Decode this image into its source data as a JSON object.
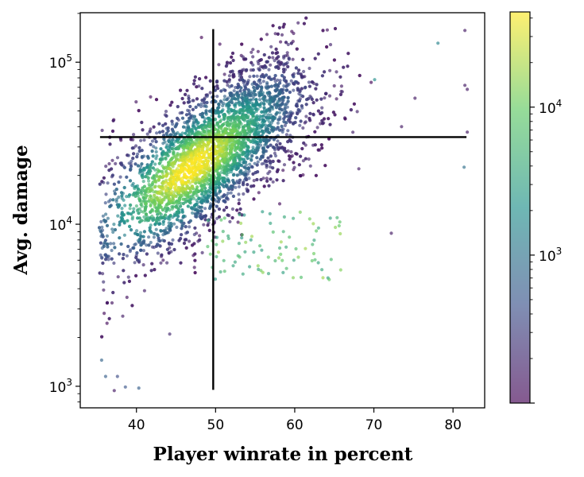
{
  "chart_data": {
    "type": "scatter",
    "title": "",
    "xlabel": "Player winrate in percent",
    "ylabel": "Avg. damage",
    "xscale": "linear",
    "yscale": "log",
    "xlim": [
      32.9,
      84.0
    ],
    "ylim": [
      736,
      202000
    ],
    "xticks": [
      40,
      50,
      60,
      70,
      80
    ],
    "xtick_labels": [
      "40",
      "50",
      "60",
      "70",
      "80"
    ],
    "yticks": [
      1000,
      10000,
      100000
    ],
    "ytick_labels": [
      {
        "base": "10",
        "exp": "3"
      },
      {
        "base": "10",
        "exp": "4"
      },
      {
        "base": "10",
        "exp": "5"
      }
    ],
    "grid": false,
    "colorbar": {
      "colormap": "viridis",
      "scale": "log",
      "range": [
        100,
        44000
      ],
      "ticks": [
        1000,
        10000
      ],
      "tick_labels": [
        {
          "base": "10",
          "exp": "3"
        },
        {
          "base": "10",
          "exp": "4"
        }
      ],
      "alpha": 0.6
    },
    "reference_lines": [
      {
        "orientation": "vertical",
        "x": 49.7,
        "y_range": [
          950,
          160000
        ],
        "color": "#000000"
      },
      {
        "orientation": "horizontal",
        "y": 34500,
        "x_range": [
          35.4,
          81.7
        ],
        "color": "#000000"
      }
    ],
    "point_model": {
      "description": "dense cloud of per-player points, log10(damage) linear in winrate, color = local point density",
      "main_cloud": {
        "count": 5200,
        "winrate_mean": 49.5,
        "winrate_sd": 6.2,
        "winrate_min": 35.3,
        "log10_damage_at_40": 4.12,
        "log10_damage_slope_per_pct": 0.033,
        "log10_damage_sd": 0.2,
        "peak_density_at": [
          47,
          30000
        ]
      },
      "low_damage_cluster": {
        "count": 90,
        "winrate_range": [
          49,
          66
        ],
        "damage_range": [
          4500,
          12000
        ],
        "density": 8000
      }
    },
    "outliers": [
      {
        "x": 37.2,
        "y": 940,
        "c": 150
      },
      {
        "x": 38.6,
        "y": 990,
        "c": 500
      },
      {
        "x": 40.3,
        "y": 975,
        "c": 600
      },
      {
        "x": 36.1,
        "y": 1150,
        "c": 600
      },
      {
        "x": 37.6,
        "y": 1150,
        "c": 400
      },
      {
        "x": 35.6,
        "y": 1450,
        "c": 700
      },
      {
        "x": 44.2,
        "y": 2100,
        "c": 200
      },
      {
        "x": 81.5,
        "y": 157000,
        "c": 150
      },
      {
        "x": 81.5,
        "y": 72000,
        "c": 150
      },
      {
        "x": 81.8,
        "y": 68000,
        "c": 150
      },
      {
        "x": 81.4,
        "y": 22500,
        "c": 900
      },
      {
        "x": 81.8,
        "y": 37000,
        "c": 150
      },
      {
        "x": 78.1,
        "y": 131000,
        "c": 1500
      },
      {
        "x": 72.2,
        "y": 8800,
        "c": 150
      },
      {
        "x": 75.2,
        "y": 60000,
        "c": 150
      },
      {
        "x": 73.5,
        "y": 40000,
        "c": 150
      },
      {
        "x": 70.1,
        "y": 78000,
        "c": 2000
      },
      {
        "x": 68.1,
        "y": 22000,
        "c": 150
      }
    ]
  }
}
